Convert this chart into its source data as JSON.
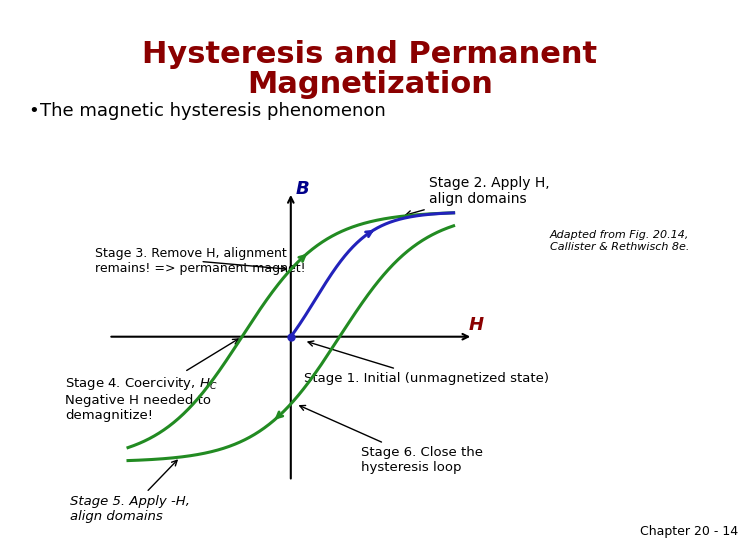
{
  "title_line1": "Hysteresis and Permanent",
  "title_line2": "Magnetization",
  "title_color": "#8B0000",
  "title_fontsize": 22,
  "bullet_text": "The magnetic hysteresis phenomenon",
  "bullet_fontsize": 13,
  "background_color": "#FFFFFF",
  "hysteresis_loop_color": "#228B22",
  "initial_curve_color": "#2222BB",
  "H_label_color": "#8B0000",
  "B_label_color": "#00008B",
  "chapter_text": "Chapter 20 - 14",
  "chapter_fontsize": 9,
  "adapted_text": "Adapted from Fig. 20.14,\nCallister & Rethwisch 8e.",
  "adapted_fontsize": 8
}
